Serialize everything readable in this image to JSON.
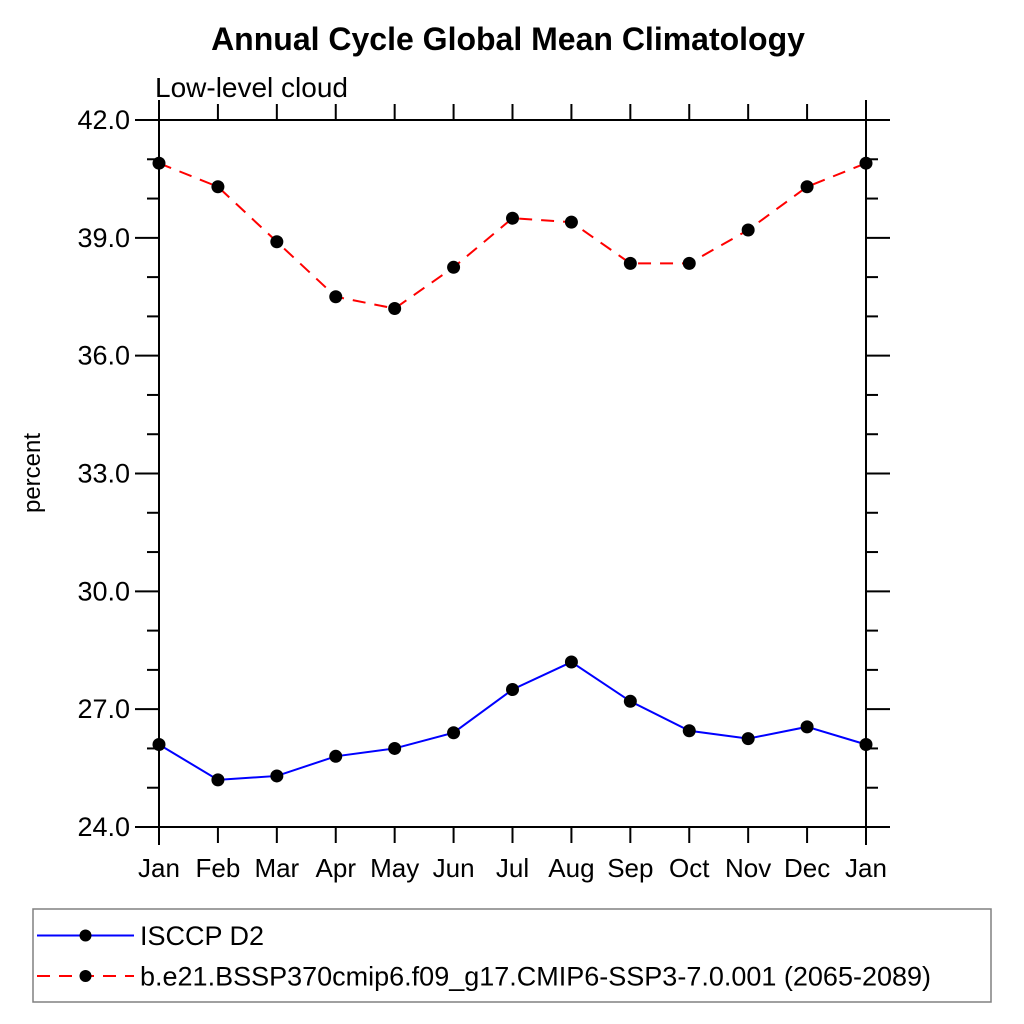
{
  "title": "Annual Cycle Global Mean Climatology",
  "subtitle": "Low-level cloud",
  "chart_data": {
    "type": "line",
    "title": "Annual Cycle Global Mean Climatology",
    "subtitle": "Low-level cloud",
    "xlabel": "",
    "ylabel": "percent",
    "categories": [
      "Jan",
      "Feb",
      "Mar",
      "Apr",
      "May",
      "Jun",
      "Jul",
      "Aug",
      "Sep",
      "Oct",
      "Nov",
      "Dec",
      "Jan"
    ],
    "ylim": [
      24.0,
      42.0
    ],
    "ytick_major": [
      24.0,
      27.0,
      30.0,
      33.0,
      36.0,
      39.0,
      42.0
    ],
    "ytick_minor_step": 1.0,
    "ytick_label_format": "one-decimal",
    "grid": false,
    "legend_position": "bottom-left-box",
    "axis_color": "#000000",
    "legend_border_color": "#808080",
    "marker": "filled-circle",
    "marker_color": "#000000",
    "series": [
      {
        "name": "ISCCP D2",
        "color": "#0000ff",
        "line_style": "solid",
        "values": [
          26.1,
          25.2,
          25.3,
          25.8,
          26.0,
          26.4,
          27.5,
          28.2,
          27.2,
          26.45,
          26.25,
          26.55,
          26.1
        ]
      },
      {
        "name": "b.e21.BSSP370cmip6.f09_g17.CMIP6-SSP3-7.0.001 (2065-2089)",
        "color": "#ff0000",
        "line_style": "dashed",
        "values": [
          40.9,
          40.3,
          38.9,
          37.5,
          37.2,
          38.25,
          39.5,
          39.4,
          38.35,
          38.35,
          39.2,
          40.3,
          40.9
        ]
      }
    ]
  }
}
